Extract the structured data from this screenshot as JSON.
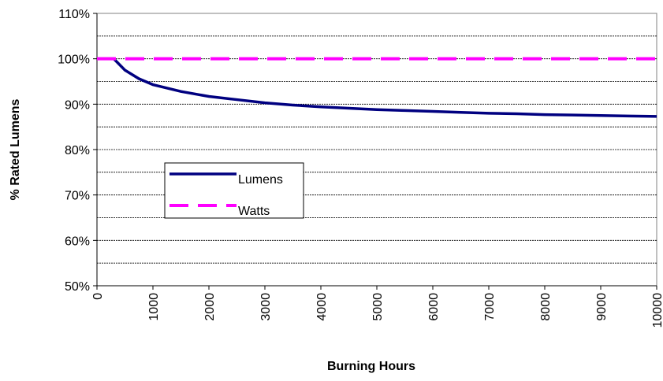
{
  "chart_data": {
    "type": "line",
    "xlabel": "Burning Hours",
    "ylabel": "% Rated Lumens",
    "series": [
      {
        "name": "Lumens",
        "color": "#000080",
        "dash": false,
        "x": [
          0,
          300,
          500,
          750,
          1000,
          1500,
          2000,
          2500,
          3000,
          3500,
          4000,
          4500,
          5000,
          5500,
          6000,
          6500,
          7000,
          7500,
          8000,
          8500,
          9000,
          9500,
          10000
        ],
        "values": [
          100,
          100,
          97.5,
          95.6,
          94.3,
          92.8,
          91.7,
          91.0,
          90.3,
          89.8,
          89.4,
          89.1,
          88.8,
          88.6,
          88.4,
          88.2,
          88.0,
          87.9,
          87.7,
          87.6,
          87.5,
          87.4,
          87.3
        ]
      },
      {
        "name": "Watts",
        "color": "#ff00ff",
        "dash": true,
        "x": [
          0,
          10000
        ],
        "values": [
          100,
          100
        ]
      }
    ],
    "xlim": [
      0,
      10000
    ],
    "xticks": [
      0,
      1000,
      2000,
      3000,
      4000,
      5000,
      6000,
      7000,
      8000,
      9000,
      10000
    ],
    "ylim": [
      50,
      110
    ],
    "yticks": [
      {
        "value": 50,
        "label": "50%"
      },
      {
        "value": 60,
        "label": "60%"
      },
      {
        "value": 70,
        "label": "70%"
      },
      {
        "value": 80,
        "label": "80%"
      },
      {
        "value": 90,
        "label": "90%"
      },
      {
        "value": 100,
        "label": "100%"
      },
      {
        "value": 110,
        "label": "110%"
      }
    ],
    "minor_yticks": [
      55,
      65,
      75,
      85,
      95,
      105
    ],
    "grid": true
  }
}
